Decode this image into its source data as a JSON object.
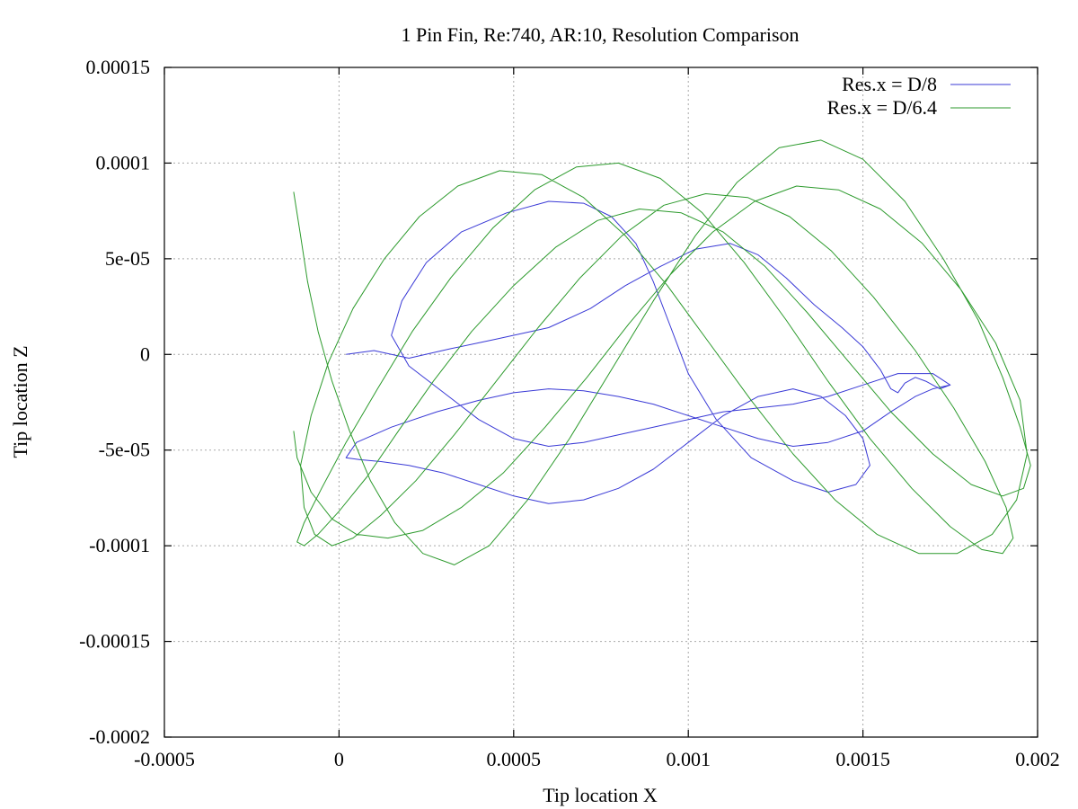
{
  "chart_data": {
    "type": "line",
    "title": "1 Pin Fin, Re:740, AR:10, Resolution Comparison",
    "xlabel": "Tip location X",
    "ylabel": "Tip location Z",
    "xlim": [
      -0.0005,
      0.002
    ],
    "ylim": [
      -0.0002,
      0.00015
    ],
    "x_ticks": [
      -0.0005,
      0,
      0.0005,
      0.001,
      0.0015,
      0.002
    ],
    "x_tick_labels": [
      "-0.0005",
      "0",
      "0.0005",
      "0.001",
      "0.0015",
      "0.002"
    ],
    "y_ticks": [
      -0.0002,
      -0.00015,
      -0.0001,
      -5e-05,
      0,
      5e-05,
      0.0001,
      0.00015
    ],
    "y_tick_labels": [
      "-0.0002",
      "-0.00015",
      "-0.0001",
      "-5e-05",
      "0",
      "5e-05",
      "0.0001",
      "0.00015"
    ],
    "grid": true,
    "legend_position": "top-right",
    "series": [
      {
        "name": "Res.x = D/8",
        "color": "#3a3ad6",
        "x": [
          2e-05,
          0.0001,
          0.0002,
          0.00032,
          0.00045,
          0.0006,
          0.00072,
          0.00082,
          0.00092,
          0.00102,
          0.00112,
          0.0012,
          0.00128,
          0.00136,
          0.00144,
          0.0015,
          0.00155,
          0.00158,
          0.0016,
          0.00162,
          0.00165,
          0.00168,
          0.00172,
          0.00175,
          0.0017,
          0.0016,
          0.0015,
          0.0014,
          0.0013,
          0.0012,
          0.0011,
          0.001,
          0.0009,
          0.0008,
          0.0007,
          0.0006,
          0.0005,
          0.0004,
          0.0003,
          0.0002,
          0.00015,
          0.00018,
          0.00025,
          0.00035,
          0.00048,
          0.0006,
          0.0007,
          0.00078,
          0.00085,
          0.0009,
          0.00095,
          0.001,
          0.00108,
          0.00118,
          0.0013,
          0.0014,
          0.00148,
          0.00152,
          0.0015,
          0.00145,
          0.00138,
          0.0013,
          0.0012,
          0.0011,
          0.001,
          0.0009,
          0.0008,
          0.0007,
          0.0006,
          0.0005,
          0.0004,
          0.0003,
          0.0002,
          0.00012,
          6e-05,
          2e-05,
          5e-05,
          0.00015,
          0.00028,
          0.0004,
          0.0005,
          0.0006,
          0.0007,
          0.0008,
          0.0009,
          0.001,
          0.0011,
          0.0012,
          0.0013,
          0.0014,
          0.0015,
          0.00158,
          0.00165,
          0.0017,
          0.00175
        ],
        "y": [
          0.0,
          2e-06,
          -2e-06,
          3e-06,
          8e-06,
          1.4e-05,
          2.4e-05,
          3.6e-05,
          4.6e-05,
          5.5e-05,
          5.8e-05,
          5.2e-05,
          4e-05,
          2.6e-05,
          1.4e-05,
          4e-06,
          -8e-06,
          -1.8e-05,
          -2e-05,
          -1.5e-05,
          -1.2e-05,
          -1.4e-05,
          -1.8e-05,
          -1.6e-05,
          -1e-05,
          -1e-05,
          -1.6e-05,
          -2.2e-05,
          -2.6e-05,
          -2.8e-05,
          -3e-05,
          -3.4e-05,
          -3.8e-05,
          -4.2e-05,
          -4.6e-05,
          -4.8e-05,
          -4.4e-05,
          -3.4e-05,
          -2e-05,
          -6e-06,
          1e-05,
          2.8e-05,
          4.8e-05,
          6.4e-05,
          7.4e-05,
          8e-05,
          7.9e-05,
          7.2e-05,
          5.8e-05,
          3.8e-05,
          1.4e-05,
          -1e-05,
          -3.4e-05,
          -5.4e-05,
          -6.6e-05,
          -7.2e-05,
          -6.8e-05,
          -5.8e-05,
          -4.4e-05,
          -3.2e-05,
          -2.2e-05,
          -1.8e-05,
          -2.2e-05,
          -3.2e-05,
          -4.6e-05,
          -6e-05,
          -7e-05,
          -7.6e-05,
          -7.8e-05,
          -7.4e-05,
          -6.8e-05,
          -6.2e-05,
          -5.8e-05,
          -5.6e-05,
          -5.5e-05,
          -5.4e-05,
          -4.6e-05,
          -3.8e-05,
          -3e-05,
          -2.4e-05,
          -2e-05,
          -1.8e-05,
          -1.9e-05,
          -2.2e-05,
          -2.6e-05,
          -3.2e-05,
          -3.8e-05,
          -4.4e-05,
          -4.8e-05,
          -4.6e-05,
          -4e-05,
          -3e-05,
          -2.2e-05,
          -1.8e-05,
          -1.6e-05
        ]
      },
      {
        "name": "Res.x = D/6.4",
        "color": "#2c9a2c",
        "x": [
          -0.00013,
          -0.00011,
          -9e-05,
          -6e-05,
          -2e-05,
          3e-05,
          9e-05,
          0.00016,
          0.00024,
          0.00033,
          0.00043,
          0.00054,
          0.00066,
          0.00078,
          0.0009,
          0.00102,
          0.00114,
          0.00126,
          0.00138,
          0.0015,
          0.00162,
          0.00173,
          0.00183,
          0.0019,
          0.00195,
          0.00198,
          0.00196,
          0.0019,
          0.00181,
          0.0017,
          0.00158,
          0.00146,
          0.00134,
          0.00122,
          0.0011,
          0.00098,
          0.00086,
          0.00074,
          0.00062,
          0.0005,
          0.00038,
          0.00027,
          0.00017,
          8e-05,
          0.0,
          -6e-05,
          -0.0001,
          -0.00012,
          -0.0001,
          -5e-05,
          2e-05,
          0.00011,
          0.00021,
          0.00032,
          0.00044,
          0.00056,
          0.00068,
          0.0008,
          0.00092,
          0.00104,
          0.00116,
          0.00128,
          0.0014,
          0.00152,
          0.00164,
          0.00175,
          0.00184,
          0.0019,
          0.00193,
          0.00191,
          0.00185,
          0.00176,
          0.00165,
          0.00153,
          0.00141,
          0.00129,
          0.00117,
          0.00105,
          0.00093,
          0.00081,
          0.00069,
          0.00057,
          0.00045,
          0.00033,
          0.00022,
          0.00012,
          4e-05,
          -2e-05,
          -7e-05,
          -0.0001,
          -0.00011,
          -8e-05,
          -3e-05,
          4e-05,
          0.00013,
          0.00023,
          0.00034,
          0.00046,
          0.00058,
          0.0007,
          0.00082,
          0.00094,
          0.00106,
          0.00118,
          0.0013,
          0.00142,
          0.00154,
          0.00166,
          0.00177,
          0.00187,
          0.00194,
          0.00197,
          0.00195,
          0.00188,
          0.00178,
          0.00167,
          0.00155,
          0.00143,
          0.00131,
          0.00119,
          0.00107,
          0.00095,
          0.00083,
          0.00071,
          0.00059,
          0.00047,
          0.00035,
          0.00024,
          0.00014,
          5e-05,
          -2e-05,
          -8e-05,
          -0.00012,
          -0.00013
        ],
        "y": [
          8.5e-05,
          6.2e-05,
          3.8e-05,
          1.2e-05,
          -1.4e-05,
          -4e-05,
          -6.6e-05,
          -8.8e-05,
          -0.000104,
          -0.00011,
          -0.0001,
          -7.6e-05,
          -4.4e-05,
          -8e-06,
          2.8e-05,
          6.2e-05,
          9e-05,
          0.000108,
          0.000112,
          0.000102,
          8e-05,
          5e-05,
          1.8e-05,
          -1.2e-05,
          -3.8e-05,
          -5.8e-05,
          -7e-05,
          -7.4e-05,
          -6.8e-05,
          -5.2e-05,
          -3e-05,
          -4e-06,
          2.2e-05,
          4.6e-05,
          6.4e-05,
          7.4e-05,
          7.6e-05,
          7e-05,
          5.6e-05,
          3.6e-05,
          1.2e-05,
          -1.4e-05,
          -4e-05,
          -6.4e-05,
          -8.2e-05,
          -9.4e-05,
          -0.0001,
          -9.8e-05,
          -8.8e-05,
          -7e-05,
          -4.6e-05,
          -1.8e-05,
          1.2e-05,
          4e-05,
          6.6e-05,
          8.6e-05,
          9.8e-05,
          0.0001,
          9.2e-05,
          7.4e-05,
          4.8e-05,
          1.8e-05,
          -1.4e-05,
          -4.4e-05,
          -7e-05,
          -9e-05,
          -0.000102,
          -0.000104,
          -9.6e-05,
          -8e-05,
          -5.6e-05,
          -2.8e-05,
          2e-06,
          3e-05,
          5.4e-05,
          7.2e-05,
          8.2e-05,
          8.4e-05,
          7.8e-05,
          6.2e-05,
          4e-05,
          1.4e-05,
          -1.4e-05,
          -4.2e-05,
          -6.6e-05,
          -8.4e-05,
          -9.6e-05,
          -0.0001,
          -9.4e-05,
          -8e-05,
          -5.8e-05,
          -3.2e-05,
          -4e-06,
          2.4e-05,
          5e-05,
          7.2e-05,
          8.8e-05,
          9.6e-05,
          9.4e-05,
          8.2e-05,
          6.2e-05,
          3.6e-05,
          6e-06,
          -2.4e-05,
          -5.2e-05,
          -7.6e-05,
          -9.4e-05,
          -0.000104,
          -0.000104,
          -9.4e-05,
          -7.6e-05,
          -5.2e-05,
          -2.4e-05,
          6e-06,
          3.4e-05,
          5.8e-05,
          7.6e-05,
          8.6e-05,
          8.8e-05,
          8e-05,
          6.4e-05,
          4.2e-05,
          1.6e-05,
          -1.2e-05,
          -3.8e-05,
          -6.2e-05,
          -8e-05,
          -9.2e-05,
          -9.6e-05,
          -9.4e-05,
          -8.6e-05,
          -7.2e-05,
          -5.4e-05,
          -4e-05
        ]
      }
    ]
  }
}
